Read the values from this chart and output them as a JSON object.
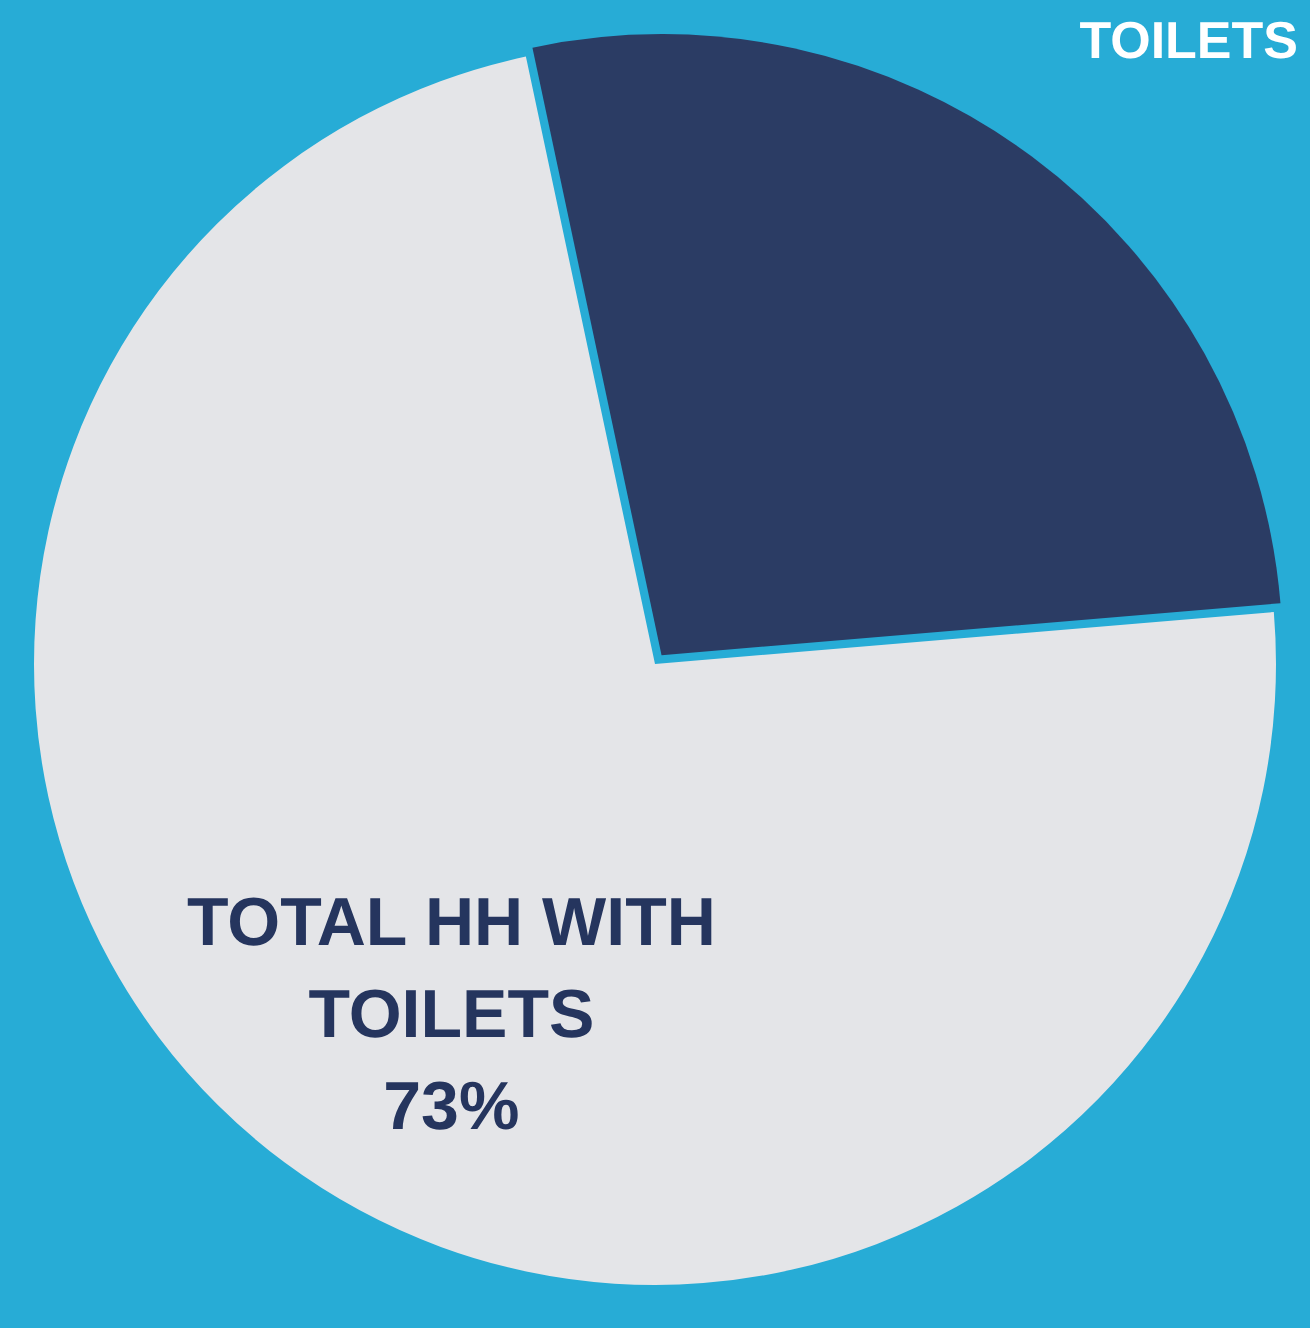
{
  "chart_data": {
    "type": "pie",
    "categories": [
      "TOTAL HH WITH TOILETS",
      "TOILETS"
    ],
    "values": [
      73,
      27
    ],
    "colors": [
      "#e4e5e8",
      "#2b3c64"
    ],
    "value_labels": [
      "73%",
      null
    ],
    "legend": false
  }
}
